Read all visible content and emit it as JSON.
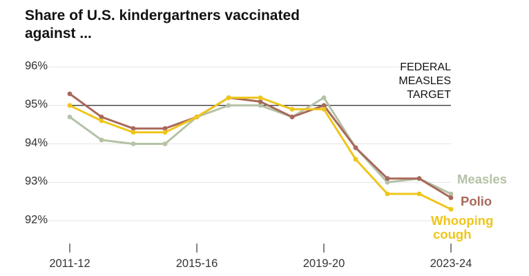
{
  "chart_data": {
    "type": "line",
    "title": "Share of U.S. kindergartners vaccinated against ...",
    "x": [
      "2011-12",
      "2012-13",
      "2013-14",
      "2014-15",
      "2015-16",
      "2016-17",
      "2017-18",
      "2018-19",
      "2019-20",
      "2020-21",
      "2021-22",
      "2022-23",
      "2023-24"
    ],
    "x_tick_labels": [
      "2011-12",
      "2015-16",
      "2019-20",
      "2023-24"
    ],
    "y_tick_labels": [
      "92%",
      "93%",
      "94%",
      "95%",
      "96%"
    ],
    "ylim": [
      91.6,
      96.2
    ],
    "grid": "horizontal",
    "reference_line": {
      "value": 95,
      "label_lines": [
        "FEDERAL",
        "MEASLES",
        "TARGET"
      ]
    },
    "series": [
      {
        "name": "Measles",
        "color": "#b4c2a6",
        "values": [
          94.7,
          94.1,
          94.0,
          94.0,
          94.7,
          95.0,
          95.0,
          94.7,
          95.2,
          93.9,
          93.0,
          93.1,
          92.7
        ]
      },
      {
        "name": "Polio",
        "color": "#a8685a",
        "values": [
          95.3,
          94.7,
          94.4,
          94.4,
          94.7,
          95.2,
          95.1,
          94.7,
          95.0,
          93.9,
          93.1,
          93.1,
          92.6
        ]
      },
      {
        "name": "Whooping cough",
        "label_lines": [
          "Whooping",
          "cough"
        ],
        "color": "#efc51a",
        "values": [
          95.0,
          94.6,
          94.3,
          94.3,
          94.7,
          95.2,
          95.2,
          94.9,
          94.9,
          93.6,
          92.7,
          92.7,
          92.3
        ]
      }
    ]
  }
}
